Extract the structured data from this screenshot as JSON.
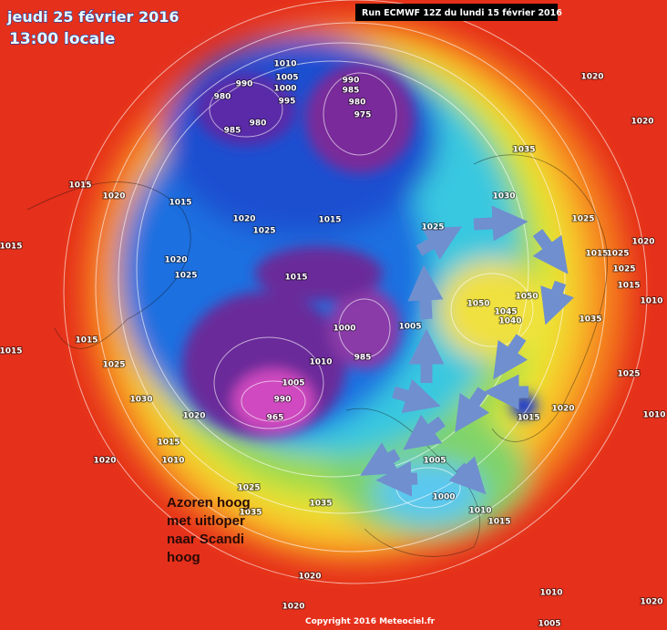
{
  "header": {
    "date": "jeudi 25 février 2016",
    "time": "13:00 locale",
    "run": "Run ECMWF 12Z du lundi 15 février 2016"
  },
  "annotation": {
    "lines": [
      "Azoren hoog",
      "met uitloper",
      "naar Scandi",
      "hoog"
    ]
  },
  "copyright": "Copyright 2016 Meteociel.fr",
  "pressure_labels": [
    "1010",
    "990",
    "1005",
    "1000",
    "995",
    "980",
    "980",
    "985",
    "990",
    "985",
    "980",
    "975",
    "1020",
    "1020",
    "1035",
    "1030",
    "1025",
    "1015",
    "1020",
    "1025",
    "1015",
    "1020",
    "1015",
    "1020",
    "1025",
    "1015",
    "1050",
    "1050",
    "1045",
    "1040",
    "1000",
    "985",
    "1010",
    "1005",
    "1005",
    "990",
    "965",
    "1020",
    "1030",
    "1025",
    "1015",
    "1015",
    "1010",
    "1020",
    "1015",
    "1020",
    "1025",
    "1010",
    "1025",
    "1015",
    "1025",
    "1025",
    "1015",
    "1010",
    "1020",
    "1015",
    "1015",
    "1035",
    "1025",
    "1035",
    "1020",
    "1020",
    "1005",
    "1000",
    "1010",
    "1015",
    "1010",
    "1005",
    "1035",
    "1020"
  ]
}
